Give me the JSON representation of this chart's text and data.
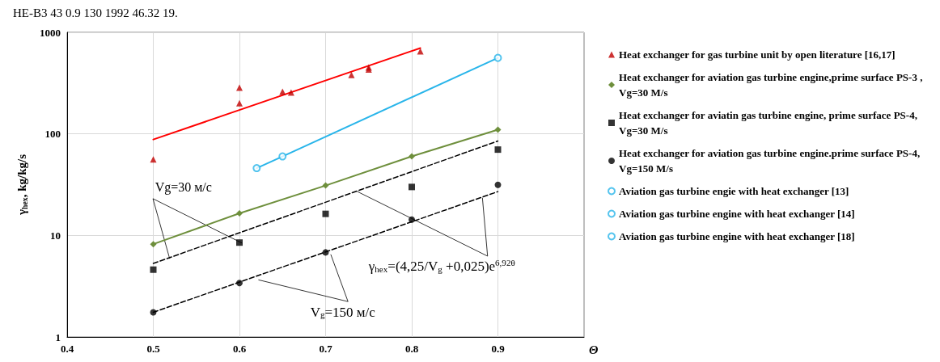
{
  "chart_data": {
    "type": "scatter",
    "xlabel": "Θ",
    "ylabel": "γ$_{hex}$, kg/kg/s",
    "log": "y",
    "grid": true,
    "legend": "right",
    "xlim": [
      0.4,
      1.0
    ],
    "xticks": [
      0.4,
      0.5,
      0.6,
      0.7,
      0.8,
      0.9
    ],
    "ylim": [
      1,
      1000
    ],
    "yticks": [
      1,
      10,
      100,
      1000
    ],
    "x": [
      0.5,
      0.6,
      0.7,
      0.8,
      0.9
    ],
    "series": [
      {
        "name": "Heat exchanger for gas turbine unit by open literature [16,17]",
        "marker": "triangle",
        "color": "#c00000",
        "x": [
          0.5,
          0.6,
          0.6,
          0.65,
          0.66,
          0.73,
          0.75,
          0.75,
          0.81
        ],
        "values": [
          56,
          285,
          200,
          260,
          255,
          380,
          450,
          430,
          650
        ]
      },
      {
        "name": "Heat exchanger for aviation gas turbine engine,prime surface PS-3 ,Vg=30 M/s",
        "type": "line",
        "marker": "diamond",
        "color": "#6e8f3c",
        "values": [
          8.2,
          16.5,
          31,
          60,
          110
        ]
      },
      {
        "name": "Heat exchanger for aviatin gas turbine engine, prime surface PS-4, Vg=30 M/s",
        "marker": "square",
        "color": "#000000",
        "values": [
          4.6,
          8.5,
          16.3,
          30,
          70
        ]
      },
      {
        "name": "Heat exchanger for aviation gas turbine engine.prime surface PS-4, Vg=150 M/s",
        "marker": "circle",
        "color": "#000000",
        "values": [
          1.75,
          3.4,
          6.8,
          14.3,
          31.5
        ]
      },
      {
        "name": "Aviation gas turbine engie with heat exchanger [13]",
        "marker": "circle",
        "color": "#29b5ea",
        "x": [
          0.9
        ],
        "values": [
          560
        ]
      },
      {
        "name": "Aviation gas turbine engine with heat exchanger [14]",
        "marker": "circle",
        "color": "#29b5ea",
        "x": [
          0.62
        ],
        "values": [
          46
        ]
      },
      {
        "name": "Aviation gas turbine engine with heat exchanger [18]",
        "marker": "circle",
        "color": "#29b5ea",
        "x": [
          0.65
        ],
        "values": [
          60
        ]
      },
      {
        "type": "line",
        "marker": "none",
        "color": "#ff0000",
        "x": [
          0.5,
          0.81
        ],
        "values": [
          88,
          700
        ]
      },
      {
        "type": "line",
        "marker": "none",
        "color": "#29b5ea",
        "x": [
          0.62,
          0.65,
          0.9
        ],
        "values": [
          46,
          60,
          560
        ]
      },
      {
        "type": "line",
        "marker": "none",
        "line_style": "dashed",
        "color": "#000000",
        "x": [
          0.5,
          0.9
        ],
        "values": [
          5.3,
          85
        ]
      },
      {
        "type": "line",
        "marker": "none",
        "line_style": "dashed",
        "color": "#000000",
        "x": [
          0.5,
          0.9
        ],
        "values": [
          1.75,
          27
        ]
      }
    ],
    "annotations": [
      "HE-B3 43 0.9 130 1992 46.32 19.",
      {
        "text": "Vg=30 м/с",
        "x": 0.519,
        "y": 5.9
      },
      {
        "text": "γ$_{hex}$=(4,25/V$_{g}$ +0,025)e$^{6,92θ}$",
        "x": 0.882,
        "y": 23.5
      },
      {
        "text": "V$_{g}$=150 м/с",
        "x": 0.706,
        "y": 6.5
      }
    ]
  }
}
